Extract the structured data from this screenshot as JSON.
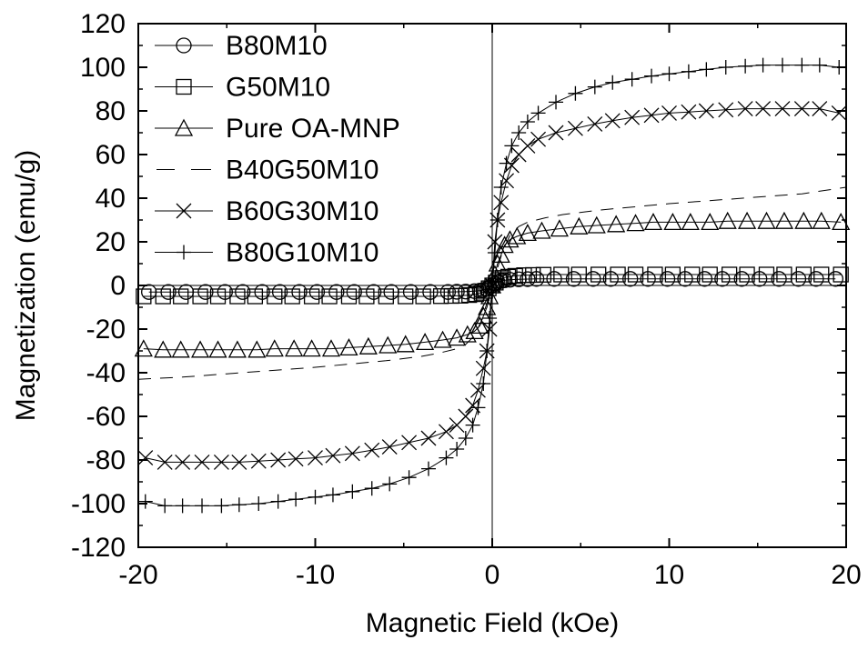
{
  "chart_data": {
    "type": "scatter",
    "title": "",
    "xlabel": "Magnetic Field (kOe)",
    "ylabel": "Magnetization (emu/g)",
    "xlim": [
      -20,
      20
    ],
    "ylim": [
      -120,
      120
    ],
    "xticks": [
      "-20",
      "-10",
      "0",
      "10",
      "20"
    ],
    "yticks": [
      "-120",
      "-100",
      "-80",
      "-60",
      "-40",
      "-20",
      "0",
      "20",
      "40",
      "60",
      "80",
      "100",
      "120"
    ],
    "legend_position": "top-left",
    "grid": false,
    "series": [
      {
        "name": "B80M10",
        "marker": "circle",
        "saturation": 3,
        "x": [
          -19.4,
          -18.3,
          -17.3,
          -16.2,
          -15.1,
          -14.1,
          -13.0,
          -12.0,
          -10.9,
          -9.9,
          -8.8,
          -7.8,
          -6.7,
          -5.7,
          -4.6,
          -3.5,
          -2.5,
          -2.0,
          -1.5,
          -1.0,
          -0.7,
          -0.5,
          -0.3,
          -0.15,
          0,
          0.15,
          0.3,
          0.5,
          0.7,
          1.0,
          1.5,
          2.0,
          2.5,
          3.5,
          4.6,
          5.7,
          6.7,
          7.8,
          8.8,
          9.9,
          10.9,
          12.0,
          13.0,
          14.1,
          15.1,
          16.2,
          17.3,
          18.3,
          19.4
        ],
        "y": [
          -3,
          -3,
          -3,
          -3,
          -3,
          -3,
          -3,
          -3,
          -3,
          -3,
          -3,
          -3,
          -3,
          -3,
          -3,
          -3,
          -3,
          -2.9,
          -2.8,
          -2.6,
          -2.4,
          -2.1,
          -1.5,
          -0.8,
          0,
          0.8,
          1.5,
          2.1,
          2.4,
          2.6,
          2.8,
          2.9,
          3,
          3,
          3,
          3,
          3,
          3,
          3,
          3,
          3,
          3,
          3,
          3,
          3,
          3,
          3,
          3,
          3
        ]
      },
      {
        "name": "G50M10",
        "marker": "square",
        "saturation": 5,
        "x": [
          -19.7,
          -18.6,
          -17.6,
          -16.5,
          -15.5,
          -14.4,
          -13.4,
          -12.3,
          -11.3,
          -10.2,
          -9.2,
          -8.1,
          -7.1,
          -6.0,
          -4.9,
          -3.9,
          -2.9,
          -2.3,
          -1.8,
          -1.3,
          -0.9,
          -0.6,
          -0.4,
          -0.2,
          0,
          0.2,
          0.4,
          0.6,
          0.9,
          1.3,
          1.8,
          2.3,
          2.9,
          3.9,
          4.9,
          6.0,
          7.1,
          8.1,
          9.2,
          10.2,
          11.3,
          12.3,
          13.4,
          14.4,
          15.5,
          16.5,
          17.6,
          18.6,
          19.7
        ],
        "y": [
          -5,
          -5,
          -5,
          -5,
          -5,
          -5,
          -5,
          -5,
          -5,
          -5,
          -5,
          -5,
          -5,
          -5,
          -5,
          -5,
          -4.9,
          -4.8,
          -4.7,
          -4.4,
          -4.0,
          -3.4,
          -2.5,
          -1.3,
          0,
          1.3,
          2.5,
          3.4,
          4.0,
          4.4,
          4.7,
          4.8,
          4.9,
          5,
          5,
          5,
          5,
          5,
          5,
          5,
          5,
          5,
          5,
          5,
          5,
          5,
          5,
          5,
          5
        ]
      },
      {
        "name": "Pure OA-MNP",
        "marker": "triangle",
        "saturation": 30,
        "x": [
          -19.7,
          -18.6,
          -17.6,
          -16.5,
          -15.5,
          -14.4,
          -13.3,
          -12.3,
          -11.2,
          -10.2,
          -9.1,
          -8.1,
          -7.0,
          -5.9,
          -4.9,
          -3.8,
          -2.8,
          -2.0,
          -1.4,
          -1.0,
          -0.7,
          -0.5,
          -0.3,
          -0.15,
          0,
          0.15,
          0.3,
          0.5,
          0.7,
          1.0,
          1.4,
          2.0,
          2.8,
          3.8,
          4.9,
          5.9,
          7.0,
          8.1,
          9.1,
          10.2,
          11.2,
          12.3,
          13.3,
          14.4,
          15.5,
          16.5,
          17.6,
          18.6,
          19.7
        ],
        "y": [
          -29,
          -29.5,
          -29.5,
          -29.5,
          -29.5,
          -29.5,
          -29.5,
          -29,
          -29,
          -29,
          -29,
          -28.5,
          -28,
          -27.5,
          -27,
          -26,
          -25,
          -24,
          -22.5,
          -21,
          -18.5,
          -14,
          -10,
          -5,
          0,
          5,
          10,
          14,
          18.5,
          21,
          22.5,
          24,
          25,
          26,
          27,
          27.5,
          28,
          28.5,
          29,
          29,
          29,
          29,
          29.5,
          29.5,
          29.5,
          29.5,
          29.5,
          29.5,
          29
        ]
      },
      {
        "name": "B40G50M10",
        "marker": "dash",
        "saturation": 45,
        "x": [
          -20,
          -17.5,
          -15,
          -12.5,
          -10,
          -8,
          -6,
          -4,
          -3,
          -2,
          -1.5,
          -1,
          -0.6,
          -0.3,
          0,
          0.3,
          0.6,
          1,
          1.5,
          2,
          3,
          4,
          6,
          8,
          10,
          12.5,
          15,
          17.5,
          20
        ],
        "y": [
          -43,
          -42,
          -40.5,
          -39,
          -37.5,
          -36,
          -34.5,
          -32.5,
          -31,
          -29,
          -27,
          -23,
          -16,
          -8,
          0,
          8,
          16,
          23,
          27,
          29,
          31,
          32.5,
          34.5,
          36,
          37.5,
          39,
          40.5,
          42,
          45
        ]
      },
      {
        "name": "B60G30M10",
        "marker": "x",
        "saturation": 81,
        "x": [
          -19.6,
          -18.5,
          -17.5,
          -16.4,
          -15.3,
          -14.3,
          -13.2,
          -12.1,
          -11.1,
          -10.0,
          -9.0,
          -7.9,
          -6.8,
          -5.8,
          -4.7,
          -3.6,
          -2.6,
          -2.0,
          -1.5,
          -1.1,
          -0.8,
          -0.5,
          -0.3,
          -0.15,
          0,
          0.15,
          0.3,
          0.5,
          0.8,
          1.1,
          1.5,
          2.0,
          2.6,
          3.6,
          4.7,
          5.8,
          6.8,
          7.9,
          9.0,
          10.0,
          11.1,
          12.1,
          13.2,
          14.3,
          15.3,
          16.4,
          17.5,
          18.5,
          19.6
        ],
        "y": [
          -79,
          -81,
          -81,
          -81,
          -81,
          -81,
          -80.5,
          -80,
          -79.5,
          -79,
          -78,
          -77,
          -75.5,
          -74,
          -72,
          -70,
          -67,
          -64,
          -60,
          -55,
          -48,
          -38,
          -30,
          -20,
          0,
          20,
          30,
          38,
          48,
          55,
          60,
          64,
          67,
          70,
          72,
          74,
          75.5,
          77,
          78,
          79,
          79.5,
          80,
          80.5,
          81,
          81,
          81,
          81,
          81,
          79
        ]
      },
      {
        "name": "B80G10M10",
        "marker": "plus",
        "saturation": 101,
        "x": [
          -19.6,
          -18.5,
          -17.5,
          -16.4,
          -15.3,
          -14.3,
          -13.2,
          -12.1,
          -11.1,
          -10.0,
          -9.0,
          -7.9,
          -6.8,
          -5.8,
          -4.7,
          -3.6,
          -2.6,
          -2.0,
          -1.5,
          -1.1,
          -0.8,
          -0.5,
          -0.3,
          -0.15,
          0,
          0.15,
          0.3,
          0.5,
          0.8,
          1.1,
          1.5,
          2.0,
          2.6,
          3.6,
          4.7,
          5.8,
          6.8,
          7.9,
          9.0,
          10.0,
          11.1,
          12.1,
          13.2,
          14.3,
          15.3,
          16.4,
          17.5,
          18.5,
          19.6
        ],
        "y": [
          -99,
          -101,
          -101,
          -101,
          -101,
          -100.5,
          -100,
          -99,
          -98,
          -97,
          -96,
          -94.5,
          -93,
          -91,
          -88,
          -84,
          -79,
          -75,
          -70,
          -64,
          -56,
          -45,
          -30,
          -15,
          0,
          15,
          30,
          45,
          56,
          64,
          70,
          75,
          79,
          84,
          88,
          91,
          93,
          94.5,
          96,
          97,
          98,
          99,
          100,
          100.5,
          101,
          101,
          101,
          101,
          100
        ]
      }
    ]
  },
  "colors": {
    "axis": "#000000",
    "series": "#000000",
    "background": "#ffffff"
  }
}
